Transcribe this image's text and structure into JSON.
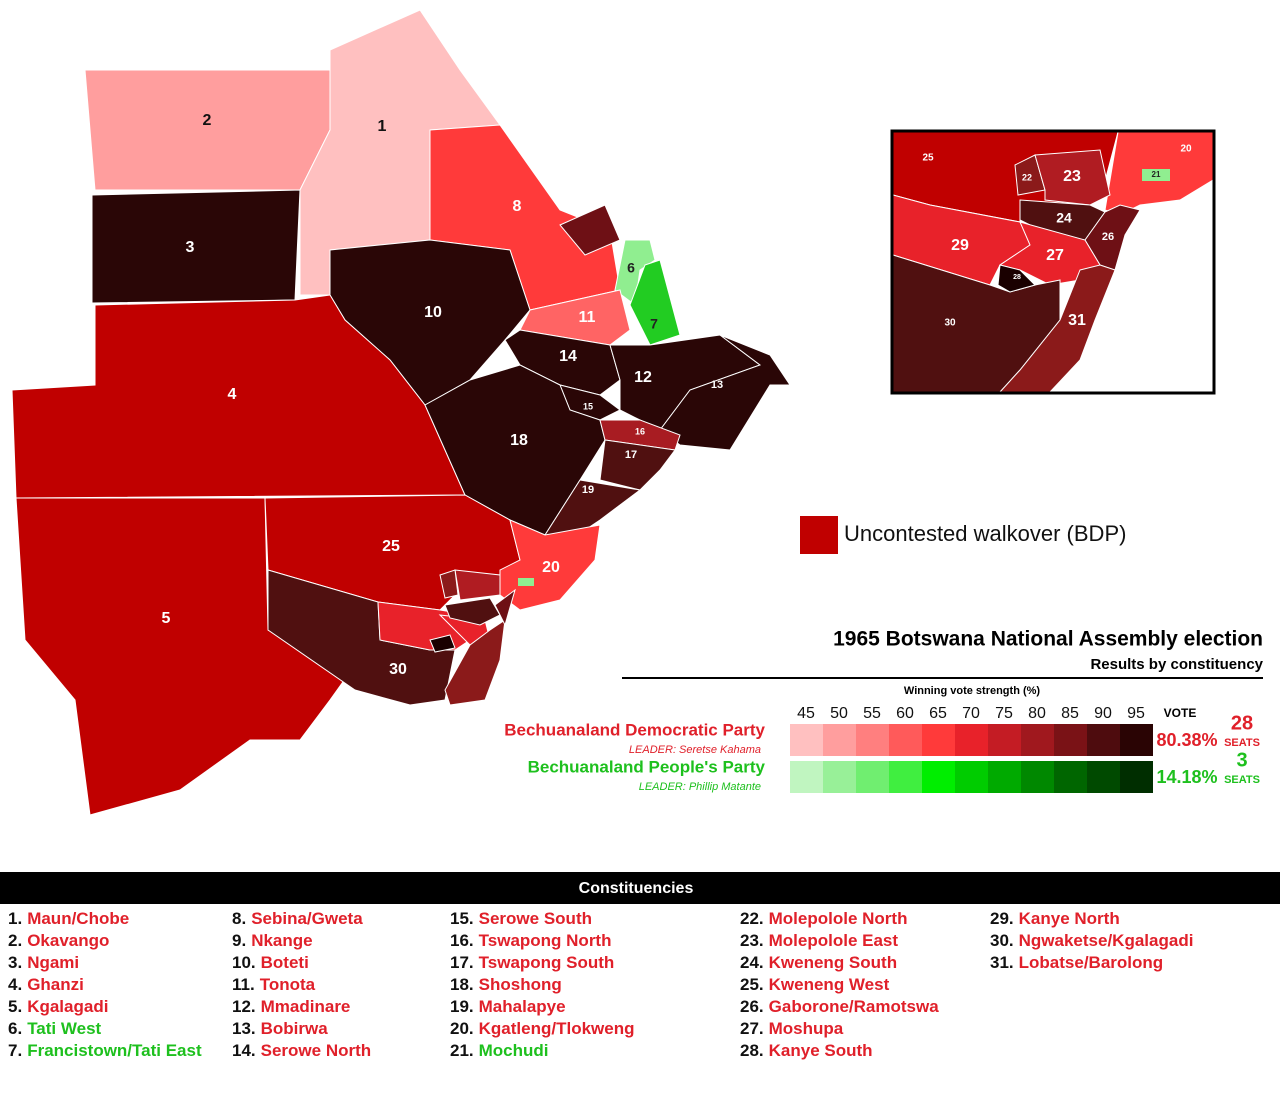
{
  "map": {
    "labels": [
      "1",
      "2",
      "3",
      "4",
      "5",
      "6",
      "7",
      "8",
      "10",
      "11",
      "12",
      "13",
      "14",
      "15",
      "16",
      "17",
      "18",
      "19",
      "20",
      "25",
      "30"
    ],
    "inset_labels": [
      "25",
      "20",
      "21",
      "22",
      "23",
      "24",
      "26",
      "29",
      "27",
      "28",
      "30",
      "31"
    ]
  },
  "legend": {
    "walkover": "Uncontested walkover (BDP)"
  },
  "title": "1965 Botswana National Assembly election",
  "subtitle": "Results by constituency",
  "scale": {
    "label": "Winning vote strength (%)",
    "ticks": [
      45,
      50,
      55,
      60,
      65,
      70,
      75,
      80,
      85,
      90,
      95
    ],
    "vote_header": "VOTE",
    "red_colors": [
      "#ffc0c0",
      "#ff9e9e",
      "#ff7f7f",
      "#ff5a5a",
      "#ff3a3a",
      "#e8222a",
      "#c41c24",
      "#a0181e",
      "#7a1216",
      "#4e0c0e",
      "#2a0404"
    ],
    "green_colors": [
      "#c0f5c0",
      "#98f098",
      "#70ee70",
      "#40ee40",
      "#00ee00",
      "#00cc00",
      "#00aa00",
      "#008800",
      "#006600",
      "#004a00",
      "#002e00"
    ]
  },
  "parties": [
    {
      "name": "Bechuanaland Democratic Party",
      "leader": "LEADER: Seretse Kahama",
      "vote": "80.38%",
      "seats": "28",
      "seats_label": "SEATS",
      "color": "#e0202a"
    },
    {
      "name": "Bechuanaland People's Party",
      "leader": "LEADER: Phillip Matante",
      "vote": "14.18%",
      "seats": "3",
      "seats_label": "SEATS",
      "color": "#1ec01e"
    }
  ],
  "constituencies": {
    "title": "Constituencies",
    "items": [
      {
        "number": "1.",
        "name": "Maun/Chobe",
        "party": 0
      },
      {
        "number": "2.",
        "name": "Okavango",
        "party": 0
      },
      {
        "number": "3.",
        "name": "Ngami",
        "party": 0
      },
      {
        "number": "4.",
        "name": "Ghanzi",
        "party": 0
      },
      {
        "number": "5.",
        "name": "Kgalagadi",
        "party": 0
      },
      {
        "number": "6.",
        "name": "Tati West",
        "party": 1
      },
      {
        "number": "7.",
        "name": "Francistown/Tati East",
        "party": 1
      },
      {
        "number": "8.",
        "name": "Sebina/Gweta",
        "party": 0
      },
      {
        "number": "9.",
        "name": "Nkange",
        "party": 0
      },
      {
        "number": "10.",
        "name": "Boteti",
        "party": 0
      },
      {
        "number": "11.",
        "name": "Tonota",
        "party": 0
      },
      {
        "number": "12.",
        "name": "Mmadinare",
        "party": 0
      },
      {
        "number": "13.",
        "name": "Bobirwa",
        "party": 0
      },
      {
        "number": "14.",
        "name": "Serowe North",
        "party": 0
      },
      {
        "number": "15.",
        "name": "Serowe South",
        "party": 0
      },
      {
        "number": "16.",
        "name": "Tswapong North",
        "party": 0
      },
      {
        "number": "17.",
        "name": "Tswapong South",
        "party": 0
      },
      {
        "number": "18.",
        "name": "Shoshong",
        "party": 0
      },
      {
        "number": "19.",
        "name": "Mahalapye",
        "party": 0
      },
      {
        "number": "20.",
        "name": "Kgatleng/Tlokweng",
        "party": 0
      },
      {
        "number": "21.",
        "name": "Mochudi",
        "party": 1
      },
      {
        "number": "22.",
        "name": "Molepolole North",
        "party": 0
      },
      {
        "number": "23.",
        "name": "Molepolole East",
        "party": 0
      },
      {
        "number": "24.",
        "name": "Kweneng South",
        "party": 0
      },
      {
        "number": "25.",
        "name": "Kweneng West",
        "party": 0
      },
      {
        "number": "26.",
        "name": "Gaborone/Ramotswa",
        "party": 0
      },
      {
        "number": "27.",
        "name": "Moshupa",
        "party": 0
      },
      {
        "number": "28.",
        "name": "Kanye South",
        "party": 0
      },
      {
        "number": "29.",
        "name": "Kanye North",
        "party": 0
      },
      {
        "number": "30.",
        "name": "Ngwaketse/Kgalagadi",
        "party": 0
      },
      {
        "number": "31.",
        "name": "Lobatse/Barolong",
        "party": 0
      }
    ]
  }
}
